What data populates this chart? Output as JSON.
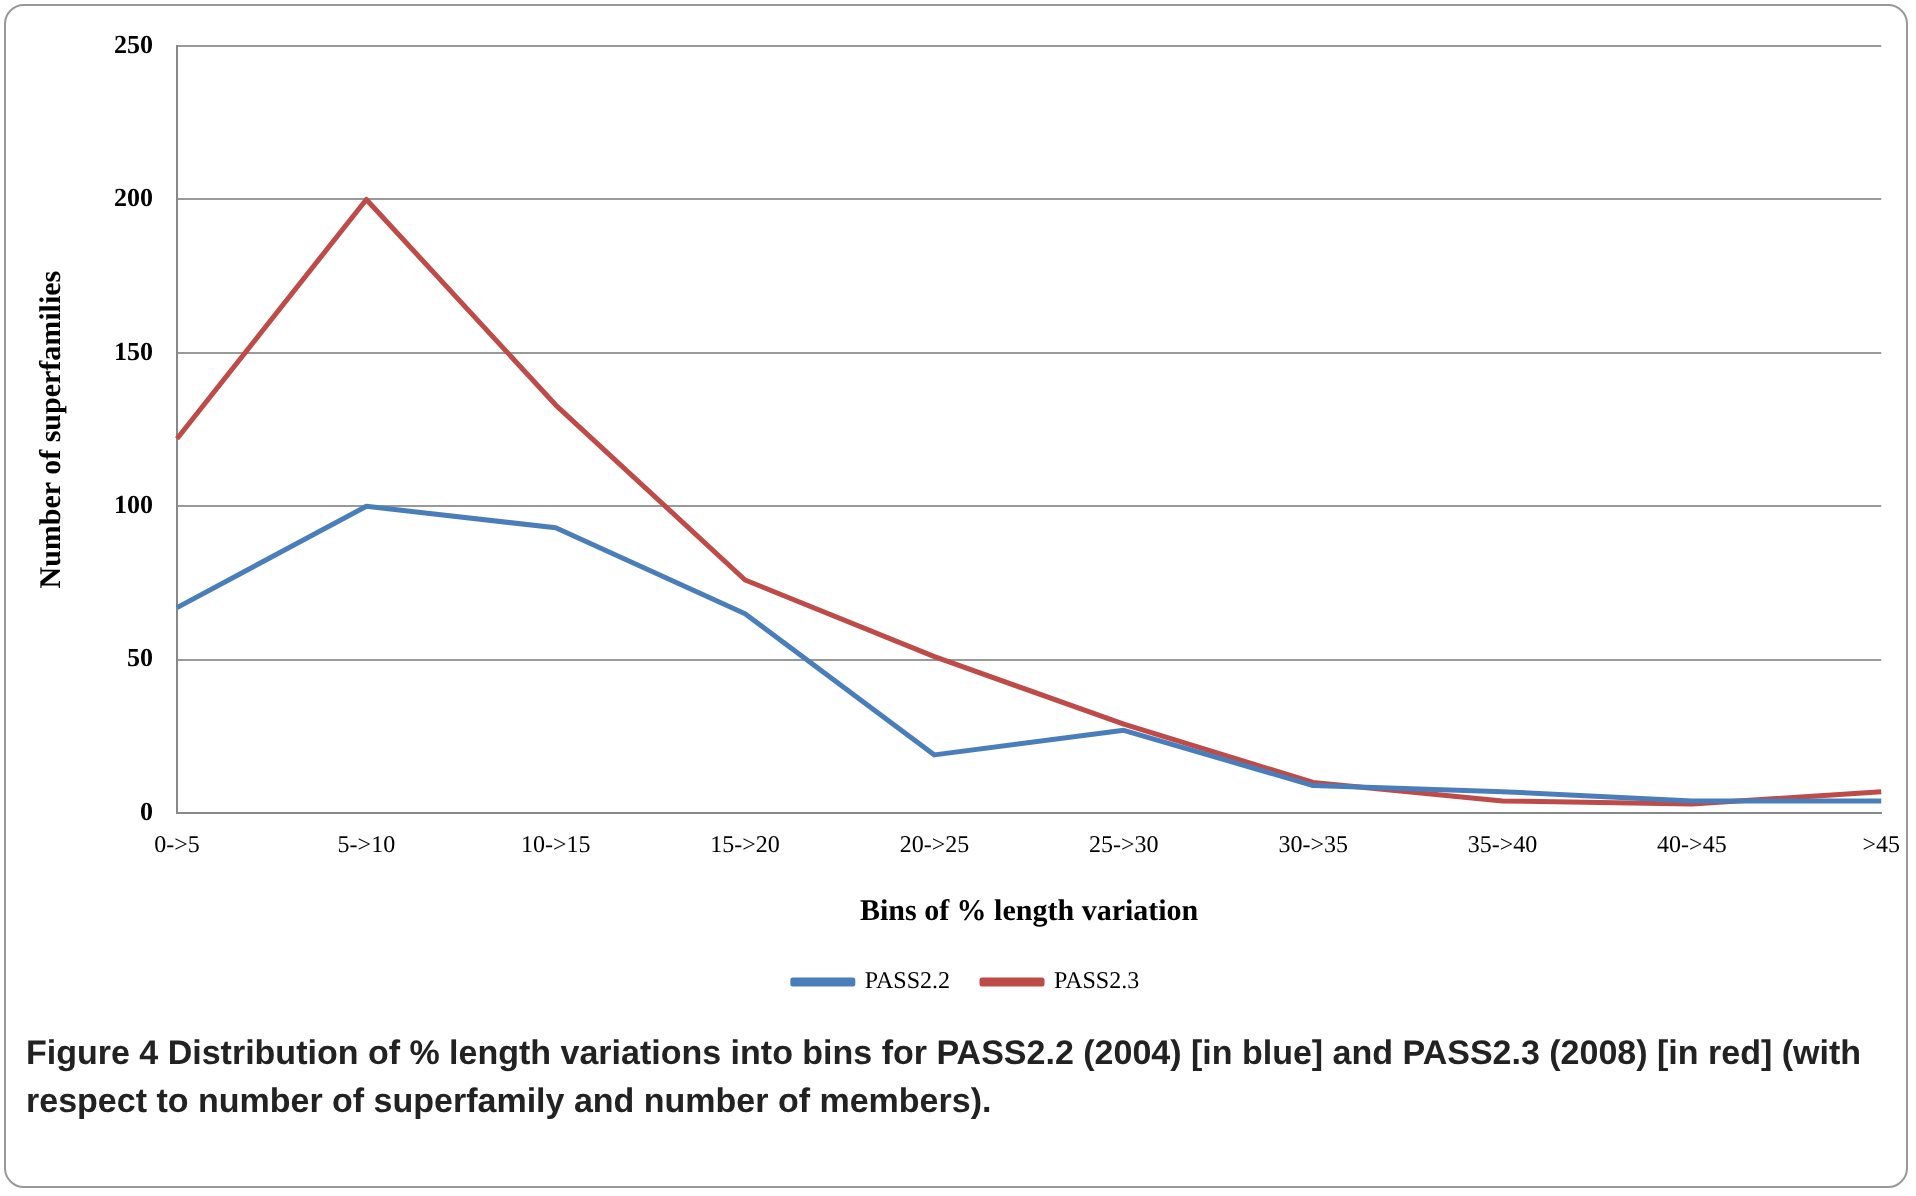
{
  "chart_data": {
    "type": "line",
    "xlabel": "Bins of % length variation",
    "ylabel": "Number of superfamilies",
    "categories": [
      "0->5",
      "5->10",
      "10->15",
      "15->20",
      "20->25",
      "25->30",
      "30->35",
      "35->40",
      "40->45",
      ">45"
    ],
    "series": [
      {
        "name": "PASS2.2",
        "color": "#4a7ebb",
        "values": [
          67,
          100,
          93,
          65,
          19,
          27,
          9,
          7,
          4,
          4
        ]
      },
      {
        "name": "PASS2.3",
        "color": "#be4b48",
        "values": [
          122,
          200,
          133,
          76,
          51,
          29,
          10,
          4,
          3,
          7
        ]
      }
    ],
    "ylim": [
      0,
      250
    ],
    "yticks": [
      0,
      50,
      100,
      150,
      200,
      250
    ],
    "grid": "y",
    "legend": "bottom",
    "marker": "none",
    "line_style": "solid",
    "annotations": [
      "Figure 4 Distribution of % length variations into bins for PASS2.2 (2004) [in blue] and PASS2.3 (2008) [in red] (with respect to number of superfamily and number of members)."
    ]
  }
}
